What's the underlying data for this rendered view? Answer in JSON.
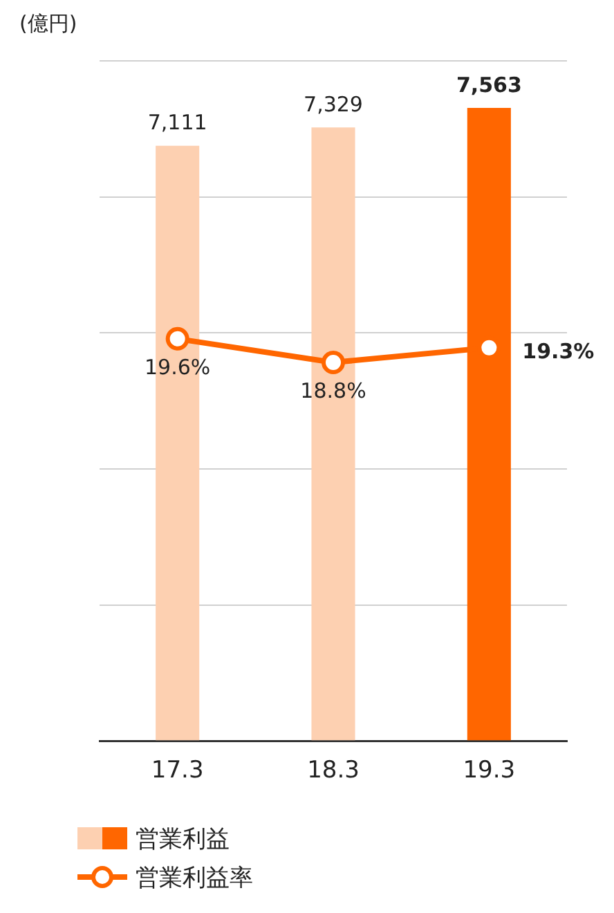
{
  "chart_data": {
    "type": "bar",
    "ylabel": "(億円)",
    "categories": [
      "17.3",
      "18.3",
      "19.3"
    ],
    "series": [
      {
        "name": "営業利益",
        "colors": [
          "#fdd0b1",
          "#fdd0b1",
          "#ff6600"
        ],
        "values": [
          7111,
          7329,
          7563
        ],
        "value_labels": [
          "7,111",
          "7,329",
          "7,563"
        ]
      },
      {
        "name": "営業利益率",
        "type": "line",
        "axis": "y2",
        "color": "#ff6600",
        "values": [
          19.6,
          18.8,
          19.3
        ],
        "value_labels": [
          "19.6%",
          "18.8%",
          "19.3%"
        ],
        "marker": "circle"
      }
    ],
    "ylim": [
      0,
      8125
    ],
    "yticks": [
      {
        "value": 0,
        "label": null
      },
      {
        "value": 1625,
        "label": null
      },
      {
        "value": 3250,
        "label": null
      },
      {
        "value": 4875,
        "label": null
      },
      {
        "value": 6500,
        "label": null
      },
      {
        "value": 8125,
        "label": null
      }
    ],
    "y2lim": [
      6,
      29
    ],
    "grid": "y",
    "tick_labels": "x",
    "legend": "bottom"
  }
}
